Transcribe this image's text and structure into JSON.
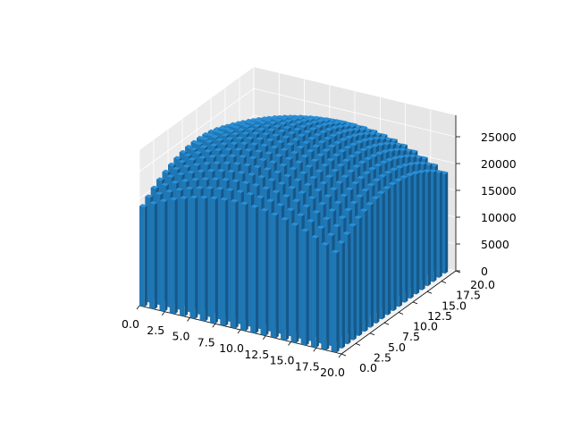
{
  "chart_data": {
    "type": "bar3d",
    "title": "",
    "xlabel": "",
    "ylabel": "",
    "zlabel": "",
    "xlim": [
      0,
      20
    ],
    "ylim": [
      0,
      20
    ],
    "zlim": [
      0,
      29000
    ],
    "x_ticks": [
      "0.0",
      "2.5",
      "5.0",
      "7.5",
      "10.0",
      "12.5",
      "15.0",
      "17.5",
      "20.0"
    ],
    "y_ticks": [
      "0.0",
      "2.5",
      "5.0",
      "7.5",
      "10.0",
      "12.5",
      "15.0",
      "17.5",
      "20.0"
    ],
    "z_ticks": [
      "0",
      "5000",
      "10000",
      "15000",
      "20000",
      "25000"
    ],
    "grid": true,
    "bar_color": "#1f77b4",
    "surface_note_values": {
      "grid_x": [
        0,
        1,
        2,
        3,
        4,
        5,
        6,
        7,
        8,
        9,
        10,
        11,
        12,
        13,
        14,
        15,
        16,
        17,
        18,
        19
      ],
      "grid_y": [
        0,
        1,
        2,
        3,
        4,
        5,
        6,
        7,
        8,
        9,
        10,
        11,
        12,
        13,
        14,
        15,
        16,
        17,
        18,
        19
      ],
      "z_formula_description": "z = 29000 - 11000 * ((x-10)^2 + (y-10)^2) / 200 approx; bars form an inverted bowl with heights ~18000 at corners to ~28000 at center"
    }
  }
}
